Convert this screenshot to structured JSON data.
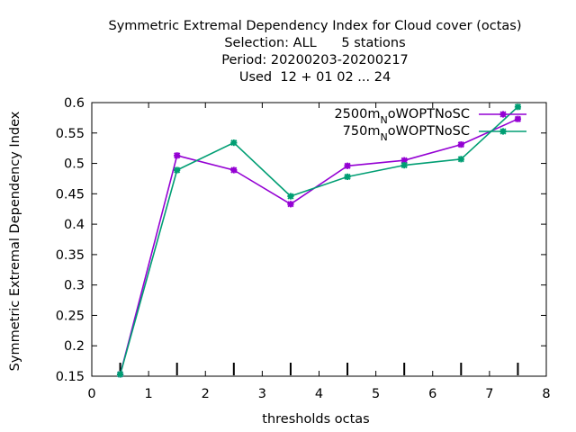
{
  "chart_data": {
    "type": "line",
    "title_lines": [
      "Symmetric Extremal Dependency Index  for Cloud cover (octas)",
      "Selection: ALL      5 stations",
      "Period: 20200203-20200217",
      "Used  12 + 01 02 ... 24"
    ],
    "xlabel": "thresholds octas",
    "ylabel": "Symmetric Extremal Dependency Index",
    "xlim": [
      0,
      8
    ],
    "ylim": [
      0.15,
      0.6
    ],
    "x_ticks": [
      0,
      1,
      2,
      3,
      4,
      5,
      6,
      7,
      8
    ],
    "x_tick_labels": [
      "0",
      "1",
      "2",
      "3",
      "4",
      "5",
      "6",
      "7",
      "8"
    ],
    "y_ticks": [
      0.15,
      0.2,
      0.25,
      0.3,
      0.35,
      0.4,
      0.45,
      0.5,
      0.55,
      0.6
    ],
    "y_tick_labels": [
      "0.15",
      "0.2",
      "0.25",
      "0.3",
      "0.35",
      "0.4",
      "0.45",
      "0.5",
      "0.55",
      "0.6"
    ],
    "grid": false,
    "legend_position": "top-right",
    "threshold_markers_x": [
      0.5,
      1.5,
      2.5,
      3.5,
      4.5,
      5.5,
      6.5,
      7.5
    ],
    "series": [
      {
        "name": "2500m",
        "name_sub": "N",
        "name_suffix": "oWOPTNoSC",
        "color": "#9400d3",
        "x": [
          0.5,
          1.5,
          2.5,
          3.5,
          4.5,
          5.5,
          6.5,
          7.5
        ],
        "values": [
          0.153,
          0.513,
          0.489,
          0.433,
          0.496,
          0.505,
          0.531,
          0.573
        ]
      },
      {
        "name": "750m",
        "name_sub": "N",
        "name_suffix": "oWOPTNoSC",
        "color": "#009e73",
        "x": [
          0.5,
          1.5,
          2.5,
          3.5,
          4.5,
          5.5,
          6.5,
          7.5
        ],
        "values": [
          0.153,
          0.489,
          0.534,
          0.446,
          0.478,
          0.497,
          0.507,
          0.593
        ]
      }
    ]
  }
}
